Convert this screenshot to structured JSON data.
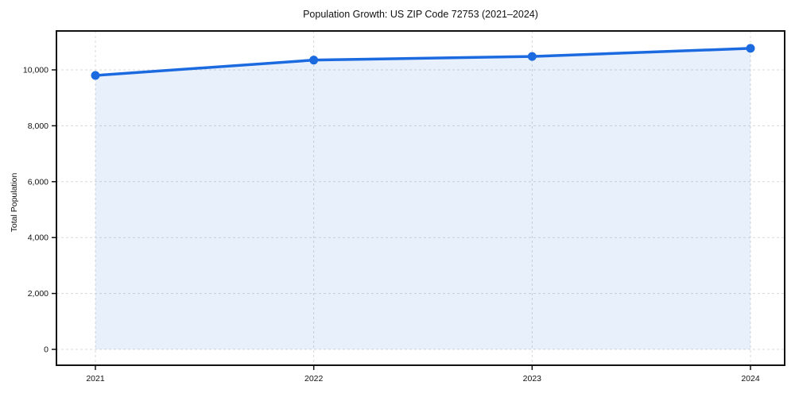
{
  "figure": {
    "background": "#ffffff"
  },
  "chart_data": {
    "type": "line",
    "title": "Population Growth: US ZIP Code 72753 (2021–2024)",
    "xlabel": "",
    "ylabel": "Total Population",
    "categories": [
      "2021",
      "2022",
      "2023",
      "2024"
    ],
    "series": [
      {
        "name": "Total Population",
        "values": [
          9800,
          10350,
          10480,
          10770
        ]
      }
    ],
    "y_ticks": [
      0,
      2000,
      4000,
      6000,
      8000,
      10000
    ],
    "y_tick_labels": [
      "0",
      "2,000",
      "4,000",
      "6,000",
      "8,000",
      "10,000"
    ],
    "ylim": [
      -600,
      11400
    ],
    "grid": "both-dashed",
    "area_fill": true,
    "markers": true,
    "legend": "none",
    "colors": {
      "line": "#1c6ae0",
      "marker": "#1c6ae0",
      "area": "rgba(28,106,224,0.10)",
      "grid": "#d8d8d8",
      "axis": "#111111",
      "text": "#111111"
    }
  }
}
